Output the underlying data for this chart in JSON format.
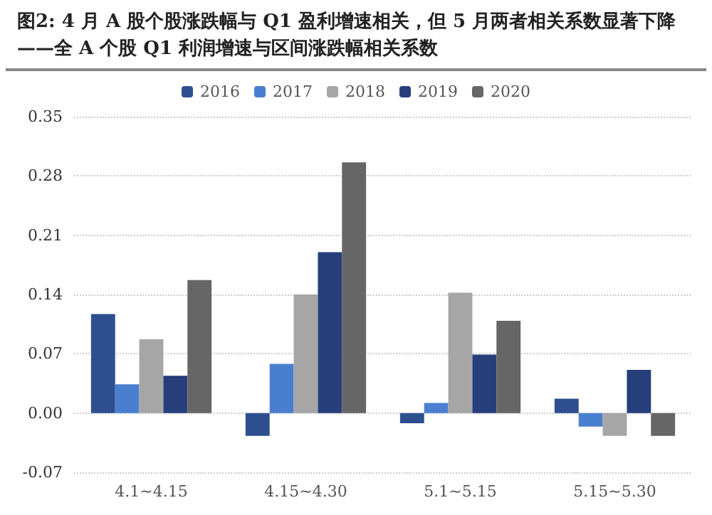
{
  "chart_data": {
    "type": "bar",
    "title": "图2:  4 月 A 股个股涨跌幅与 Q1 盈利增速相关，但 5 月两者相关系数显著下降——全 A 个股 Q1 利润增速与区间涨跌幅相关系数",
    "categories": [
      "4.1~4.15",
      "4.15~4.30",
      "5.1~5.15",
      "5.15~5.30"
    ],
    "series": [
      {
        "name": "2016",
        "color": "#2e4f8f",
        "values": [
          0.117,
          -0.027,
          -0.012,
          0.017
        ]
      },
      {
        "name": "2017",
        "color": "#4a7fd0",
        "values": [
          0.034,
          0.058,
          0.012,
          -0.016
        ]
      },
      {
        "name": "2018",
        "color": "#a6a6a6",
        "values": [
          0.087,
          0.14,
          0.142,
          -0.027
        ]
      },
      {
        "name": "2019",
        "color": "#263f7a",
        "values": [
          0.044,
          0.19,
          0.069,
          0.051
        ]
      },
      {
        "name": "2020",
        "color": "#666666",
        "values": [
          0.157,
          0.296,
          0.109,
          -0.027
        ]
      }
    ],
    "ylim": [
      -0.07,
      0.35
    ],
    "yticks": [
      {
        "value": -0.07,
        "label": "-0.07"
      },
      {
        "value": 0,
        "label": "0.00"
      },
      {
        "value": 0.07,
        "label": "0.07"
      },
      {
        "value": 0.14,
        "label": "0.14"
      },
      {
        "value": 0.21,
        "label": "0.21"
      },
      {
        "value": 0.28,
        "label": "0.28"
      },
      {
        "value": 0.35,
        "label": "0.35"
      }
    ],
    "grid": "y",
    "legend": "top"
  }
}
